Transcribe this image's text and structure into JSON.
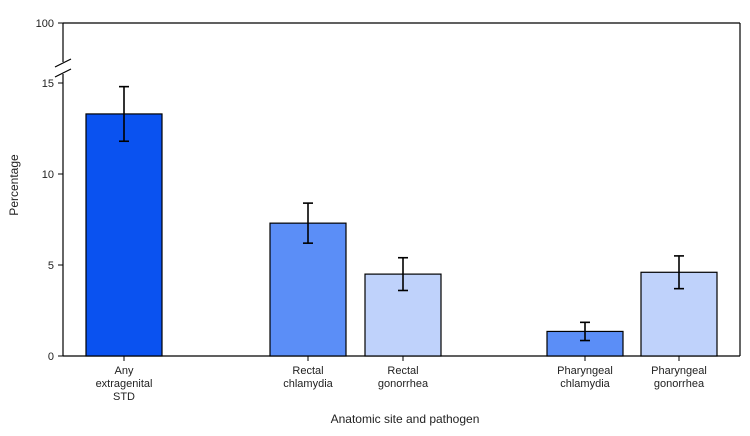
{
  "chart_data": {
    "type": "bar",
    "title": "",
    "xlabel": "Anatomic site and pathogen",
    "ylabel": "Percentage",
    "ylim": [
      0,
      100
    ],
    "axis_break": {
      "from": 17,
      "to": 99
    },
    "yticks": [
      "0",
      "5",
      "10",
      "15",
      "100"
    ],
    "grid": false,
    "legend": "none",
    "categories": [
      [
        "Any",
        "extragenital",
        "STD"
      ],
      [
        "Rectal",
        "chlamydia"
      ],
      [
        "Rectal",
        "gonorrhea"
      ],
      [
        "Pharyngeal",
        "chlamydia"
      ],
      [
        "Pharyngeal",
        "gonorrhea"
      ]
    ],
    "values": [
      13.3,
      7.3,
      4.5,
      1.35,
      4.6
    ],
    "error_low": [
      11.8,
      6.2,
      3.6,
      0.85,
      3.7
    ],
    "error_high": [
      14.8,
      8.4,
      5.4,
      1.85,
      5.5
    ],
    "colors": [
      "#0a52f0",
      "#5b8ef7",
      "#bfd2fb",
      "#5b8ef7",
      "#bfd2fb"
    ]
  }
}
